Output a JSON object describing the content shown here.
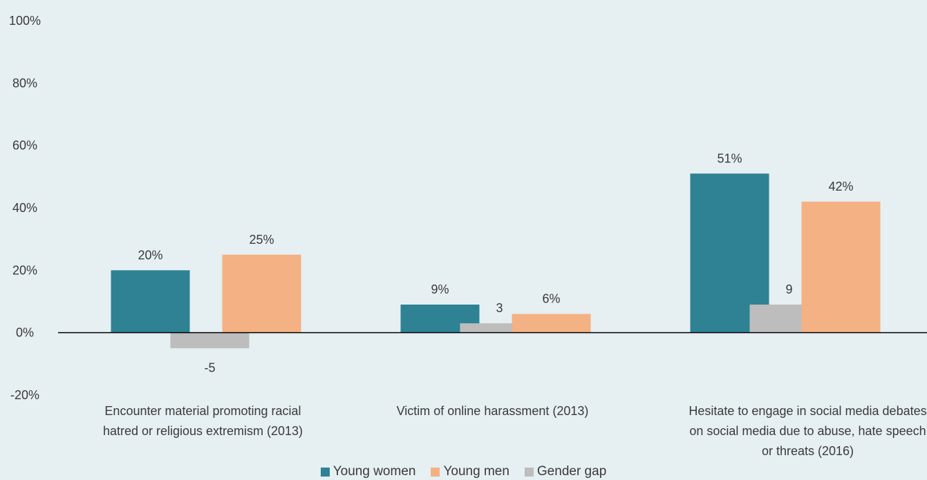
{
  "chart_data": {
    "type": "bar",
    "title": "",
    "xlabel": "",
    "ylabel": "",
    "ylim": [
      -20,
      100
    ],
    "yticks": [
      -20,
      0,
      20,
      40,
      60,
      80,
      100
    ],
    "ytick_labels": [
      "-20%",
      "0%",
      "20%",
      "40%",
      "60%",
      "80%",
      "100%"
    ],
    "grid": false,
    "legend_position": "bottom",
    "categories": [
      [
        "Encounter material promoting racial",
        "hatred or religious extremism (2013)"
      ],
      [
        "Victim of online harassment (2013)"
      ],
      [
        "Hesitate to engage in social media debates",
        "on social media due to abuse, hate speech",
        "or threats (2016)"
      ]
    ],
    "series": [
      {
        "name": "Young women",
        "color": "#2e8294",
        "values": [
          20,
          9,
          51
        ],
        "labels": [
          "20%",
          "9%",
          "51%"
        ]
      },
      {
        "name": "Gender gap",
        "color": "#bdbdbd",
        "values": [
          -5,
          3,
          9
        ],
        "labels": [
          "-5",
          "3",
          "9"
        ]
      },
      {
        "name": "Young men",
        "color": "#f4b183",
        "values": [
          25,
          6,
          42
        ],
        "labels": [
          "25%",
          "6%",
          "42%"
        ]
      }
    ],
    "legend": [
      {
        "name": "Young women",
        "color": "#2e8294"
      },
      {
        "name": "Young men",
        "color": "#f4b183"
      },
      {
        "name": "Gender gap",
        "color": "#bdbdbd"
      }
    ]
  }
}
